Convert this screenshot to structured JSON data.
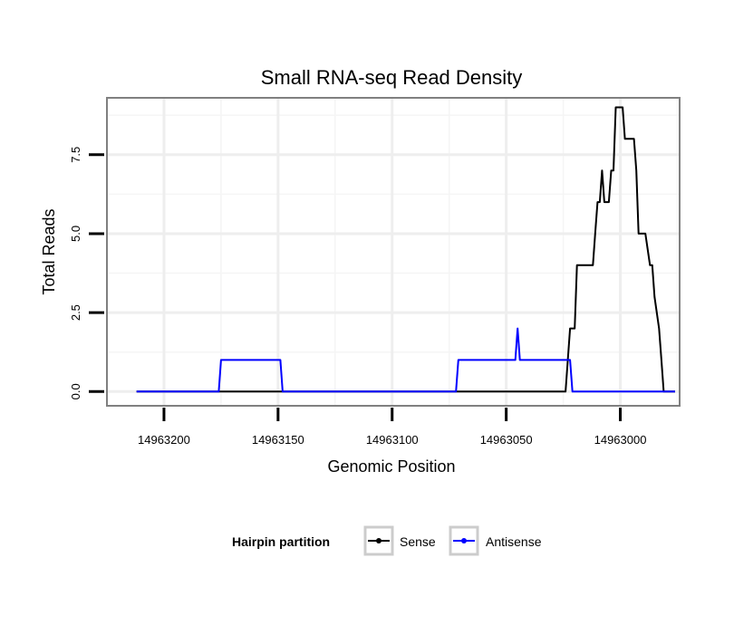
{
  "chart_data": {
    "type": "line",
    "title": "Small RNA-seq Read Density",
    "xlabel": "Genomic Position",
    "ylabel": "Total Reads",
    "xlim": [
      14963225,
      14962974
    ],
    "ylim": [
      -0.45,
      9.3
    ],
    "x_reversed": true,
    "grid": true,
    "x_ticks": [
      14963200,
      14963150,
      14963100,
      14963050,
      14963000
    ],
    "x_tick_labels": [
      "14963200",
      "14963150",
      "14963100",
      "14963050",
      "14963000"
    ],
    "y_ticks": [
      0,
      2.5,
      5,
      7.5
    ],
    "y_tick_labels": [
      "0.0",
      "2.5",
      "5.0",
      "7.5"
    ],
    "legend": {
      "title": "Hairpin partition",
      "position": "bottom",
      "entries": [
        "Sense",
        "Antisense"
      ]
    },
    "series": [
      {
        "name": "Sense",
        "color": "#000000",
        "x": [
          14963212,
          14963024,
          14963023,
          14963022,
          14963021,
          14963020,
          14963019,
          14963012,
          14963011,
          14963010,
          14963009,
          14963008,
          14963007,
          14963006,
          14963005,
          14963004,
          14963003,
          14963002,
          14962999,
          14962998,
          14962997,
          14962996,
          14962994,
          14962993,
          14962992,
          14962991,
          14962990,
          14962989,
          14962987,
          14962986,
          14962985,
          14962983,
          14962982,
          14962981,
          14962980,
          14962979,
          14962978,
          14962976
        ],
        "y": [
          0,
          0,
          1,
          2,
          2,
          2,
          4,
          4,
          5,
          6,
          6,
          7,
          6,
          6,
          6,
          7,
          7,
          9,
          9,
          8,
          8,
          8,
          8,
          7,
          5,
          5,
          5,
          5,
          4,
          4,
          3,
          2,
          1,
          0,
          0,
          0,
          0,
          0
        ]
      },
      {
        "name": "Antisense",
        "color": "#0000ff",
        "x": [
          14963212,
          14963176,
          14963175,
          14963149,
          14963148,
          14963072,
          14963071,
          14963046,
          14963045,
          14963044,
          14963043,
          14963022,
          14963021,
          14962976
        ],
        "y": [
          0,
          0,
          1,
          1,
          0,
          0,
          1,
          1,
          2,
          1,
          1,
          1,
          0,
          0
        ]
      }
    ]
  }
}
